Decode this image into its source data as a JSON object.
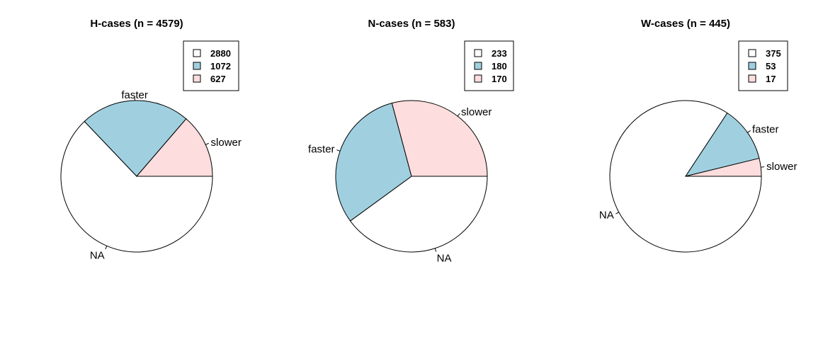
{
  "chart_data": [
    {
      "type": "pie",
      "title": "H-cases (n = 4579)",
      "slices": [
        {
          "label": "NA",
          "value": 2880,
          "color": "#ffffff"
        },
        {
          "label": "faster",
          "value": 1072,
          "color": "#a0d0e0"
        },
        {
          "label": "slower",
          "value": 627,
          "color": "#fddddd"
        }
      ],
      "legend": {
        "placement": "top-right",
        "entries": [
          {
            "text": "2880",
            "color": "#ffffff"
          },
          {
            "text": "1072",
            "color": "#a0d0e0"
          },
          {
            "text": "627",
            "color": "#fddddd"
          }
        ]
      }
    },
    {
      "type": "pie",
      "title": "N-cases (n = 583)",
      "slices": [
        {
          "label": "NA",
          "value": 233,
          "color": "#ffffff"
        },
        {
          "label": "faster",
          "value": 180,
          "color": "#a0d0e0"
        },
        {
          "label": "slower",
          "value": 170,
          "color": "#fddddd"
        }
      ],
      "legend": {
        "placement": "top-right",
        "entries": [
          {
            "text": "233",
            "color": "#ffffff"
          },
          {
            "text": "180",
            "color": "#a0d0e0"
          },
          {
            "text": "170",
            "color": "#fddddd"
          }
        ]
      }
    },
    {
      "type": "pie",
      "title": "W-cases (n = 445)",
      "slices": [
        {
          "label": "NA",
          "value": 375,
          "color": "#ffffff"
        },
        {
          "label": "faster",
          "value": 53,
          "color": "#a0d0e0"
        },
        {
          "label": "slower",
          "value": 17,
          "color": "#fddddd"
        }
      ],
      "legend": {
        "placement": "top-right",
        "entries": [
          {
            "text": "375",
            "color": "#ffffff"
          },
          {
            "text": "53",
            "color": "#a0d0e0"
          },
          {
            "text": "17",
            "color": "#fddddd"
          }
        ]
      }
    }
  ]
}
